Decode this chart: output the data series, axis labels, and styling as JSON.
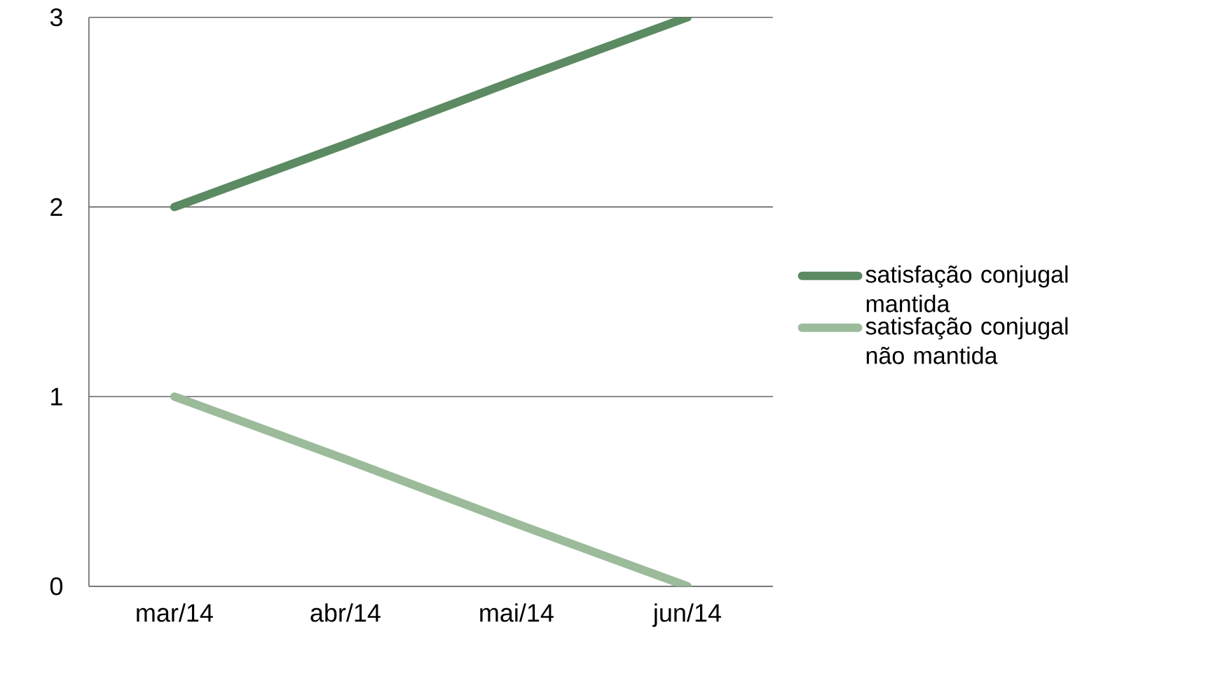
{
  "chart_data": {
    "type": "line",
    "categories": [
      "mar/14",
      "abr/14",
      "mai/14",
      "jun/14"
    ],
    "series": [
      {
        "name": "satisfação conjugal mantida",
        "color": "#5c8a62",
        "values": [
          2,
          2.33,
          2.67,
          3
        ]
      },
      {
        "name": "satisfação conjugal não mantida",
        "color": "#9bbb9b",
        "values": [
          1,
          0.67,
          0.33,
          0
        ]
      }
    ],
    "ylim": [
      0,
      3
    ],
    "yticks": [
      0,
      1,
      2,
      3
    ],
    "grid": "y",
    "legend": "right",
    "marker": "none",
    "line_style": "solid"
  }
}
